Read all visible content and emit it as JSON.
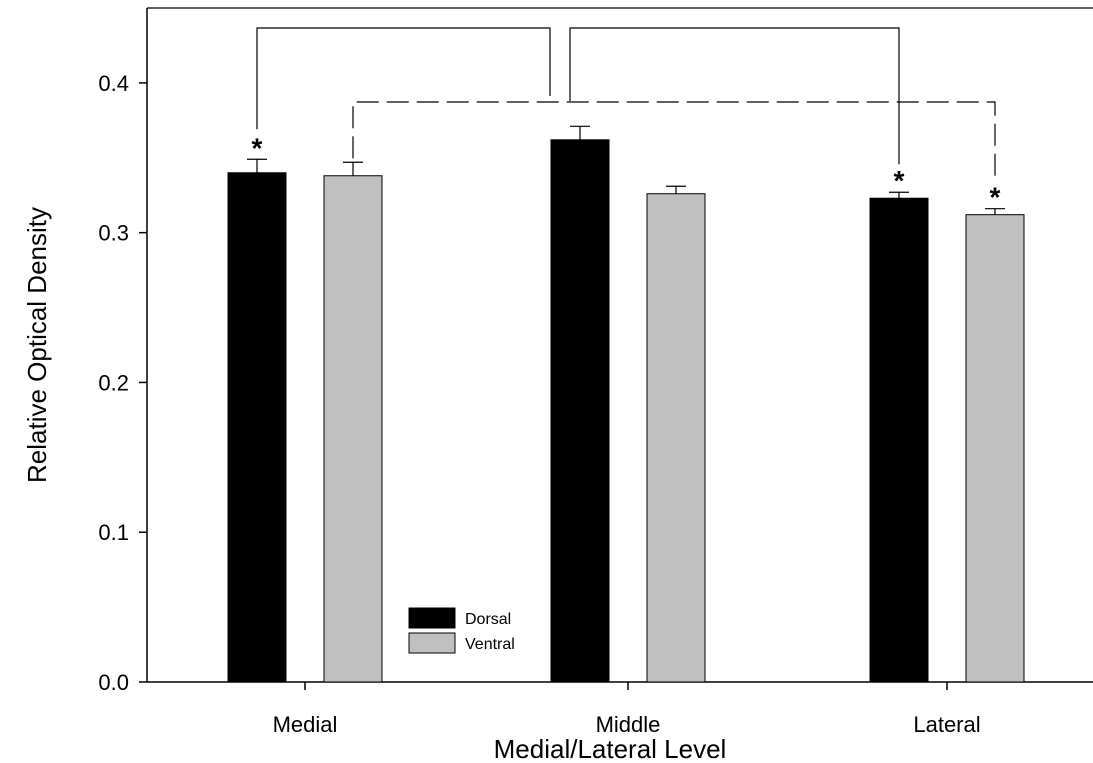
{
  "chart_data": {
    "type": "bar",
    "xlabel": "Medial/Lateral Level",
    "ylabel": "Relative Optical Density",
    "ylim": [
      0,
      0.45
    ],
    "yticks": [
      "0.0",
      "0.1",
      "0.2",
      "0.3",
      "0.4"
    ],
    "categories": [
      "Medial",
      "Middle",
      "Lateral"
    ],
    "series": [
      {
        "name": "Dorsal",
        "color": "#000000",
        "values": [
          0.34,
          0.362,
          0.323
        ],
        "errors": [
          0.009,
          0.009,
          0.004
        ]
      },
      {
        "name": "Ventral",
        "color": "#c0c0c0",
        "values": [
          0.338,
          0.326,
          0.312
        ],
        "errors": [
          0.009,
          0.005,
          0.004
        ]
      }
    ],
    "significance_marker": "*",
    "significant_bars": [
      {
        "category": "Medial",
        "series": "Dorsal"
      },
      {
        "category": "Lateral",
        "series": "Dorsal"
      },
      {
        "category": "Lateral",
        "series": "Ventral"
      }
    ],
    "comparison_brackets": [
      {
        "style": "solid",
        "from": {
          "category": "Medial",
          "series": "Dorsal"
        },
        "to": {
          "category": "Middle",
          "series": "Dorsal"
        }
      },
      {
        "style": "solid",
        "from": {
          "category": "Middle",
          "series": "Dorsal"
        },
        "to": {
          "category": "Lateral",
          "series": "Dorsal"
        }
      },
      {
        "style": "dashed",
        "from": {
          "category": "Medial",
          "series": "Ventral"
        },
        "to": {
          "category": "Lateral",
          "series": "Ventral"
        }
      }
    ],
    "legend": {
      "position": "bottom-left-inside",
      "entries": [
        "Dorsal",
        "Ventral"
      ]
    },
    "grid": false
  }
}
